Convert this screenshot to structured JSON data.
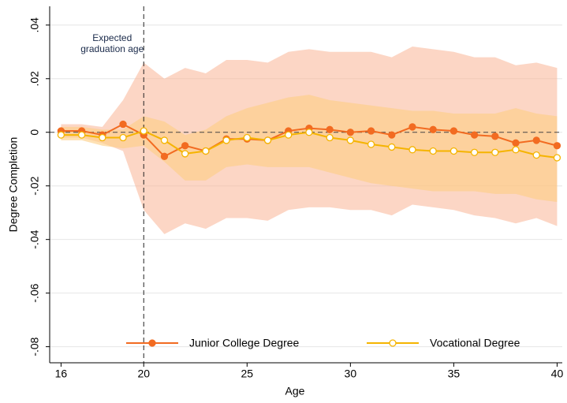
{
  "chart_data": {
    "type": "line",
    "x_label": "Age",
    "y_label": "Degree Completion",
    "x": [
      16,
      17,
      18,
      19,
      20,
      21,
      22,
      23,
      24,
      25,
      26,
      27,
      28,
      29,
      30,
      31,
      32,
      33,
      34,
      35,
      36,
      37,
      38,
      39,
      40
    ],
    "xlim": [
      15.45,
      40.25
    ],
    "xticks": [
      16,
      20,
      25,
      30,
      35,
      40
    ],
    "ylim": [
      -0.086,
      0.047
    ],
    "yticks": [
      {
        "value": -0.08,
        "label": "-.08"
      },
      {
        "value": -0.06,
        "label": "-.06"
      },
      {
        "value": -0.04,
        "label": "-.04"
      },
      {
        "value": -0.02,
        "label": "-.02"
      },
      0,
      {
        "value": 0.02,
        "label": ".02"
      },
      {
        "value": 0.04,
        "label": ".04"
      }
    ],
    "grid": true,
    "hline": 0,
    "vline": 20,
    "annotation": [
      "Expected",
      "graduation age"
    ],
    "legend": "bottom",
    "series": [
      {
        "name": "Junior College Degree",
        "color": "#f26b21",
        "band_color": "rgba(250,180,150,0.55)",
        "marker": "filled",
        "values": [
          0.0005,
          0.0005,
          -0.001,
          0.003,
          -0.001,
          -0.009,
          -0.005,
          -0.007,
          -0.0025,
          -0.0025,
          -0.003,
          0.0005,
          0.0015,
          0.001,
          0,
          0.0005,
          -0.001,
          0.002,
          0.001,
          0.0005,
          -0.001,
          -0.0015,
          -0.004,
          -0.003,
          -0.005
        ],
        "upper": [
          0.003,
          0.003,
          0.002,
          0.012,
          0.026,
          0.02,
          0.024,
          0.022,
          0.027,
          0.027,
          0.026,
          0.03,
          0.031,
          0.03,
          0.03,
          0.03,
          0.028,
          0.032,
          0.031,
          0.03,
          0.028,
          0.028,
          0.025,
          0.026,
          0.024
        ],
        "lower": [
          -0.002,
          -0.002,
          -0.004,
          -0.007,
          -0.029,
          -0.038,
          -0.034,
          -0.036,
          -0.032,
          -0.032,
          -0.033,
          -0.029,
          -0.028,
          -0.028,
          -0.029,
          -0.029,
          -0.031,
          -0.027,
          -0.028,
          -0.029,
          -0.031,
          -0.032,
          -0.034,
          -0.032,
          -0.035
        ]
      },
      {
        "name": "Vocational Degree",
        "color": "#f5b400",
        "band_color": "rgba(253,205,130,0.6)",
        "marker": "open",
        "values": [
          -0.001,
          -0.001,
          -0.002,
          -0.002,
          0.0005,
          -0.003,
          -0.008,
          -0.007,
          -0.003,
          -0.002,
          -0.003,
          -0.001,
          0,
          -0.002,
          -0.003,
          -0.0045,
          -0.0055,
          -0.0065,
          -0.007,
          -0.007,
          -0.0075,
          -0.0075,
          -0.0065,
          -0.0085,
          -0.0095
        ],
        "upper": [
          0.002,
          0.002,
          0.001,
          0.001,
          0.006,
          0.004,
          -0.001,
          0.001,
          0.006,
          0.009,
          0.011,
          0.013,
          0.014,
          0.012,
          0.011,
          0.01,
          0.009,
          0.008,
          0.008,
          0.007,
          0.007,
          0.007,
          0.009,
          0.007,
          0.006
        ],
        "lower": [
          -0.003,
          -0.003,
          -0.005,
          -0.006,
          -0.005,
          -0.011,
          -0.018,
          -0.018,
          -0.013,
          -0.012,
          -0.013,
          -0.013,
          -0.013,
          -0.015,
          -0.017,
          -0.019,
          -0.02,
          -0.021,
          -0.022,
          -0.022,
          -0.022,
          -0.023,
          -0.023,
          -0.025,
          -0.026
        ]
      }
    ]
  }
}
